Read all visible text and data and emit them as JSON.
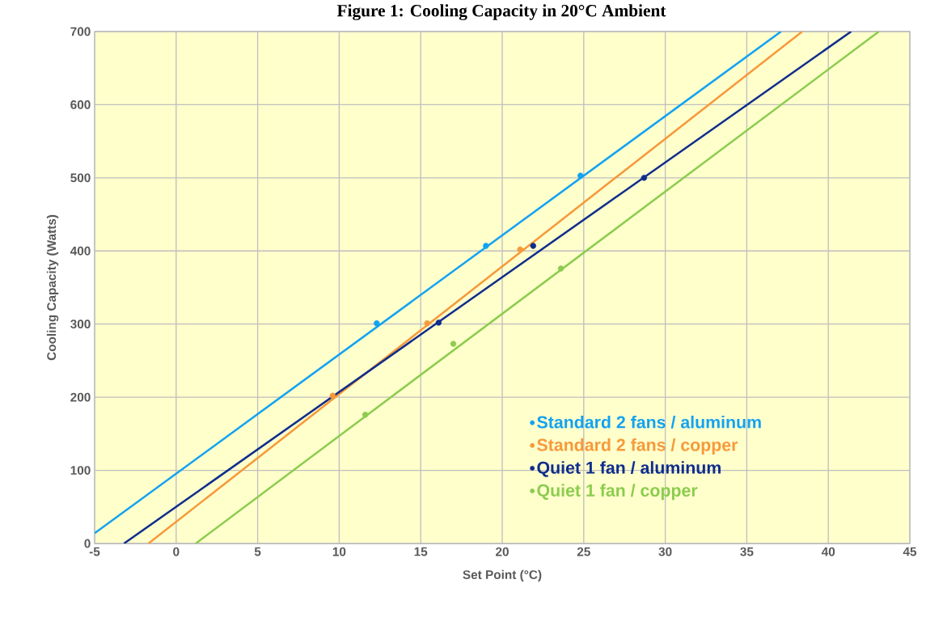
{
  "chart_data": {
    "type": "scatter",
    "title": "Figure 1: Cooling Capacity in 20°C Ambient",
    "xlabel": "Set Point (°C)",
    "ylabel": "Cooling Capacity (Watts)",
    "xlim": [
      -5,
      45
    ],
    "ylim": [
      0,
      700
    ],
    "xticks": [
      -5,
      0,
      5,
      10,
      15,
      20,
      25,
      30,
      35,
      40,
      45
    ],
    "yticks": [
      0,
      100,
      200,
      300,
      400,
      500,
      600,
      700
    ],
    "grid": true,
    "legend": "bottom right",
    "series": [
      {
        "name": "Standard 2 fans / aluminum",
        "marker": "circle",
        "color": "#12a2f2",
        "x": [
          12.3,
          19,
          24.8
        ],
        "values": [
          301,
          407,
          503
        ]
      },
      {
        "name": "Standard 2 fans / copper",
        "marker": "circle",
        "color": "#f7993a",
        "x": [
          9.6,
          15.4,
          21.1
        ],
        "values": [
          202,
          301,
          402
        ]
      },
      {
        "name": "Quiet 1 fan / aluminum",
        "marker": "circle",
        "color": "#0f2d8c",
        "x": [
          16.1,
          21.9,
          28.7
        ],
        "values": [
          302,
          407,
          500
        ]
      },
      {
        "name": "Quiet 1 fan / copper",
        "marker": "circle",
        "color": "#8ccc4e",
        "x": [
          11.6,
          17,
          23.6
        ],
        "values": [
          176,
          273,
          376
        ]
      },
      {
        "type": "line",
        "marker": "none",
        "color": "#12a2f2",
        "x": [
          -5,
          37.1
        ],
        "values": [
          14,
          700
        ]
      },
      {
        "type": "line",
        "marker": "none",
        "color": "#f7993a",
        "x": [
          -1.7,
          38.4
        ],
        "values": [
          0,
          700
        ]
      },
      {
        "type": "line",
        "marker": "none",
        "color": "#0f2d8c",
        "x": [
          -3.2,
          41.4
        ],
        "values": [
          0,
          700
        ]
      },
      {
        "type": "line",
        "marker": "none",
        "color": "#8ccc4e",
        "x": [
          1.2,
          43.1
        ],
        "values": [
          0,
          700
        ]
      }
    ]
  }
}
